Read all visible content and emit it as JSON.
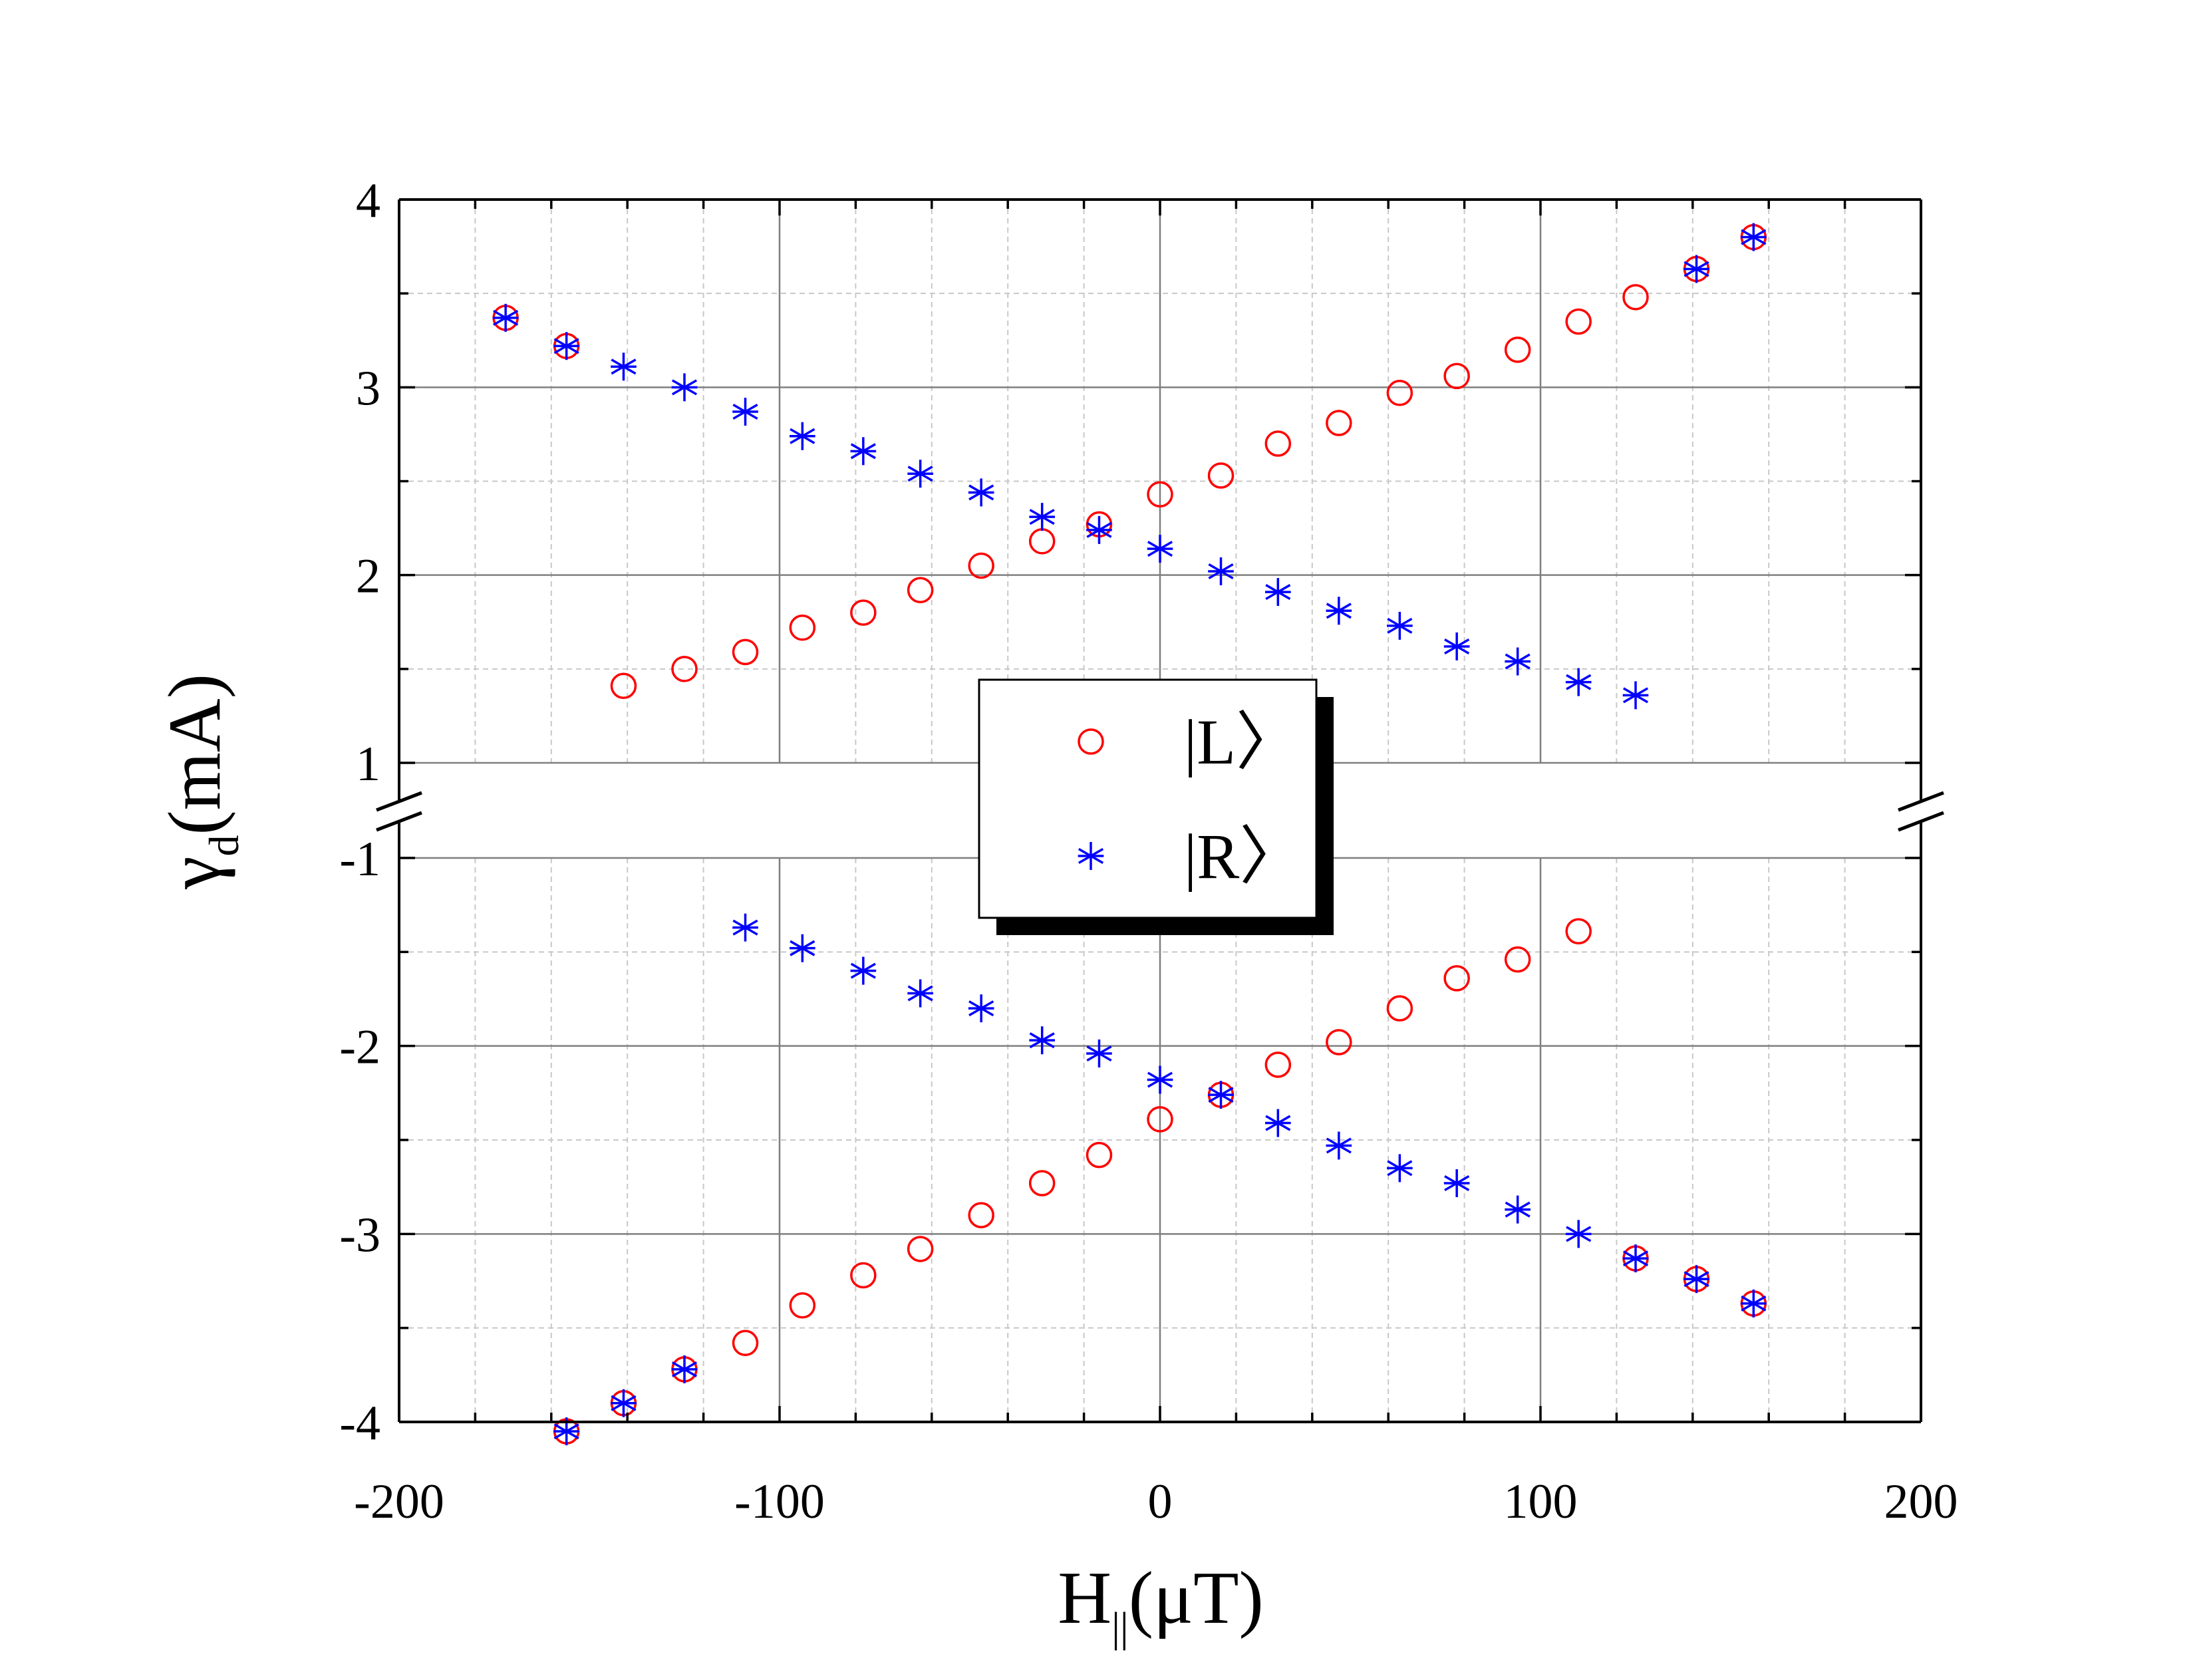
{
  "chart_data": {
    "type": "scatter",
    "title": "",
    "xlabel": {
      "main": "H",
      "sub": "||",
      "unit": "(μT)"
    },
    "ylabel": {
      "main": "γ",
      "sub": "d",
      "unit": "(mA)"
    },
    "xlim": [
      -200,
      200
    ],
    "ylim_upper": [
      1,
      4
    ],
    "ylim_lower": [
      -4,
      -1
    ],
    "axis_break": "between 1 and -1",
    "grid": true,
    "x_ticks": [
      -200,
      -100,
      0,
      100,
      200
    ],
    "x_tick_labels": [
      "-200",
      "-100",
      "0",
      "100",
      "200"
    ],
    "y_ticks": [
      4,
      3,
      2,
      1,
      -1,
      -2,
      -3,
      -4
    ],
    "y_tick_labels": [
      "4",
      "3",
      "2",
      "1",
      "-1",
      "-2",
      "-3",
      "-4"
    ],
    "legend": {
      "placement": "center",
      "entries": [
        "|L〉",
        "|R〉"
      ]
    },
    "colors": {
      "L": "#ff0000",
      "R": "#0000ff",
      "grid_major": "#7f7f7f",
      "grid_minor": "#c8c8c8",
      "axis": "#000000"
    },
    "series": [
      {
        "name": "|L〉",
        "marker": "circle",
        "points": [
          [
            -172,
            3.37
          ],
          [
            -156,
            3.22
          ],
          [
            -141,
            1.41
          ],
          [
            -125,
            1.5
          ],
          [
            -109,
            1.59
          ],
          [
            -94,
            1.72
          ],
          [
            -78,
            1.8
          ],
          [
            -63,
            1.92
          ],
          [
            -47,
            2.05
          ],
          [
            -31,
            2.18
          ],
          [
            -16,
            2.27
          ],
          [
            0,
            2.43
          ],
          [
            16,
            2.53
          ],
          [
            31,
            2.7
          ],
          [
            47,
            2.81
          ],
          [
            63,
            2.97
          ],
          [
            78,
            3.06
          ],
          [
            94,
            3.2
          ],
          [
            110,
            3.35
          ],
          [
            125,
            3.48
          ],
          [
            141,
            3.63
          ],
          [
            156,
            3.8
          ],
          [
            -156,
            -4.05
          ],
          [
            -141,
            -3.9
          ],
          [
            -125,
            -3.72
          ],
          [
            -109,
            -3.58
          ],
          [
            -94,
            -3.38
          ],
          [
            -78,
            -3.22
          ],
          [
            -63,
            -3.08
          ],
          [
            -47,
            -2.9
          ],
          [
            -31,
            -2.73
          ],
          [
            -16,
            -2.58
          ],
          [
            0,
            -2.39
          ],
          [
            16,
            -2.26
          ],
          [
            31,
            -2.1
          ],
          [
            47,
            -1.98
          ],
          [
            63,
            -1.8
          ],
          [
            78,
            -1.64
          ],
          [
            94,
            -1.54
          ],
          [
            110,
            -1.39
          ],
          [
            125,
            -3.13
          ],
          [
            141,
            -3.24
          ],
          [
            156,
            -3.37
          ]
        ]
      },
      {
        "name": "|R〉",
        "marker": "asterisk",
        "points": [
          [
            -172,
            3.37
          ],
          [
            -156,
            3.22
          ],
          [
            -141,
            3.11
          ],
          [
            -125,
            3.0
          ],
          [
            -109,
            2.87
          ],
          [
            -94,
            2.74
          ],
          [
            -78,
            2.66
          ],
          [
            -63,
            2.54
          ],
          [
            -47,
            2.44
          ],
          [
            -31,
            2.31
          ],
          [
            -16,
            2.24
          ],
          [
            0,
            2.14
          ],
          [
            16,
            2.02
          ],
          [
            31,
            1.91
          ],
          [
            47,
            1.81
          ],
          [
            63,
            1.73
          ],
          [
            78,
            1.62
          ],
          [
            94,
            1.54
          ],
          [
            110,
            1.43
          ],
          [
            125,
            1.36
          ],
          [
            141,
            3.63
          ],
          [
            156,
            3.8
          ],
          [
            -156,
            -4.05
          ],
          [
            -141,
            -3.9
          ],
          [
            -125,
            -3.72
          ],
          [
            -109,
            -1.37
          ],
          [
            -94,
            -1.48
          ],
          [
            -78,
            -1.6
          ],
          [
            -63,
            -1.72
          ],
          [
            -47,
            -1.8
          ],
          [
            -31,
            -1.97
          ],
          [
            -16,
            -2.04
          ],
          [
            0,
            -2.18
          ],
          [
            16,
            -2.26
          ],
          [
            31,
            -2.41
          ],
          [
            47,
            -2.53
          ],
          [
            63,
            -2.65
          ],
          [
            78,
            -2.73
          ],
          [
            94,
            -2.87
          ],
          [
            110,
            -3.0
          ],
          [
            125,
            -3.13
          ],
          [
            141,
            -3.24
          ],
          [
            156,
            -3.37
          ]
        ]
      }
    ]
  }
}
